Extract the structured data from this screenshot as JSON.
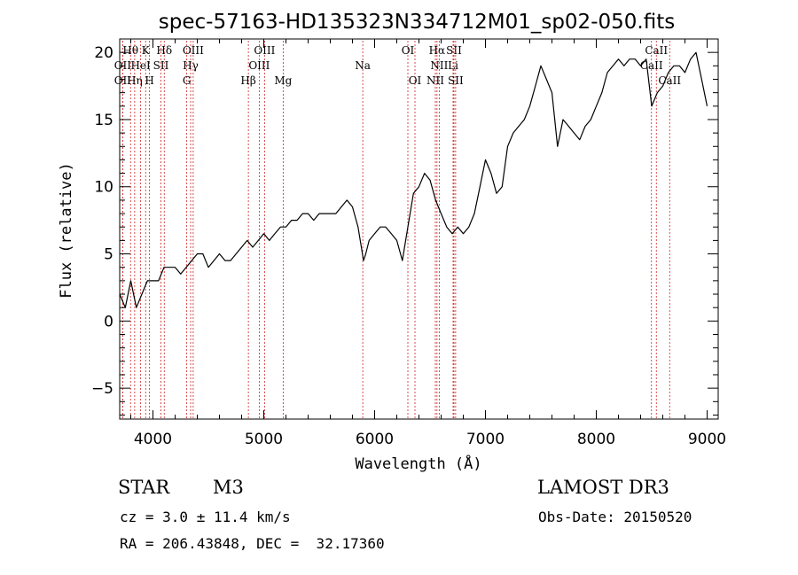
{
  "chart_data": {
    "type": "line",
    "title": "spec-57163-HD135323N334712M01_sp02-050.fits",
    "xlabel": "Wavelength (Å)",
    "ylabel": "Flux (relative)",
    "xlim": [
      3700,
      9100
    ],
    "ylim": [
      -7.3,
      21
    ],
    "xticks": [
      4000,
      5000,
      6000,
      7000,
      8000,
      9000
    ],
    "yticks": [
      -5,
      0,
      5,
      10,
      15,
      20
    ],
    "series": [
      {
        "name": "flux",
        "x": [
          3700,
          3750,
          3800,
          3850,
          3900,
          3950,
          4000,
          4050,
          4100,
          4150,
          4200,
          4250,
          4300,
          4350,
          4400,
          4450,
          4500,
          4550,
          4600,
          4650,
          4700,
          4750,
          4800,
          4850,
          4900,
          4950,
          5000,
          5050,
          5100,
          5150,
          5200,
          5250,
          5300,
          5350,
          5400,
          5450,
          5500,
          5550,
          5600,
          5650,
          5700,
          5750,
          5800,
          5850,
          5900,
          5920,
          5950,
          6000,
          6050,
          6100,
          6150,
          6200,
          6250,
          6300,
          6350,
          6400,
          6450,
          6500,
          6550,
          6600,
          6650,
          6700,
          6750,
          6800,
          6850,
          6900,
          6950,
          7000,
          7050,
          7100,
          7150,
          7200,
          7250,
          7300,
          7350,
          7400,
          7450,
          7500,
          7550,
          7600,
          7650,
          7700,
          7750,
          7800,
          7850,
          7900,
          7950,
          8000,
          8050,
          8100,
          8150,
          8200,
          8250,
          8300,
          8350,
          8400,
          8450,
          8500,
          8550,
          8600,
          8650,
          8700,
          8750,
          8800,
          8850,
          8900,
          8950,
          9000
        ],
        "y": [
          2,
          1,
          3,
          1,
          2,
          3,
          3,
          3,
          4,
          4,
          4,
          3.5,
          4,
          4.5,
          5,
          5,
          4,
          4.5,
          5,
          4.5,
          4.5,
          5,
          5.5,
          6,
          5.5,
          6,
          6.5,
          6,
          6.5,
          7,
          7,
          7.5,
          7.5,
          8,
          8,
          7.5,
          8,
          8,
          8,
          8,
          8.5,
          9,
          8.5,
          7,
          4.5,
          5,
          6,
          6.5,
          7,
          7,
          6.5,
          6,
          4.5,
          7,
          9.5,
          10,
          11,
          10.5,
          9,
          8,
          7,
          6.5,
          7,
          6.5,
          7,
          8,
          10,
          12,
          11,
          9.5,
          10,
          13,
          14,
          14.5,
          15,
          16,
          17.5,
          19,
          18,
          17,
          13,
          15,
          14.5,
          14,
          13.5,
          14.5,
          15,
          16,
          17,
          18.5,
          19,
          19.5,
          19,
          19.5,
          19.5,
          19,
          19.5,
          16,
          17,
          17.5,
          18.5,
          19,
          19,
          18.5,
          19.5,
          20,
          18,
          16
        ]
      }
    ],
    "spectral_lines": [
      {
        "label": "Hθ",
        "wl": 3798,
        "row": 0
      },
      {
        "label": "OII",
        "wl": 3727,
        "row": 1
      },
      {
        "label": "OII",
        "wl": 3727,
        "row": 2
      },
      {
        "label": "Hη",
        "wl": 3835,
        "row": 2
      },
      {
        "label": "K",
        "wl": 3934,
        "row": 0
      },
      {
        "label": "HeI",
        "wl": 3889,
        "row": 1
      },
      {
        "label": "SII",
        "wl": 4072,
        "row": 1
      },
      {
        "label": "H",
        "wl": 3969,
        "row": 2
      },
      {
        "label": "Hδ",
        "wl": 4102,
        "row": 0
      },
      {
        "label": "OIII",
        "wl": 4363,
        "row": 0
      },
      {
        "label": "Hγ",
        "wl": 4340,
        "row": 1
      },
      {
        "label": "G",
        "wl": 4305,
        "row": 2
      },
      {
        "label": "OIII",
        "wl": 5007,
        "row": 0
      },
      {
        "label": "OIII",
        "wl": 4959,
        "row": 1
      },
      {
        "label": "Hβ",
        "wl": 4861,
        "row": 2
      },
      {
        "label": "Mg",
        "wl": 5175,
        "row": 2
      },
      {
        "label": "Na",
        "wl": 5893,
        "row": 1
      },
      {
        "label": "OI",
        "wl": 6300,
        "row": 0
      },
      {
        "label": "OI",
        "wl": 6364,
        "row": 2
      },
      {
        "label": "Hα",
        "wl": 6563,
        "row": 0
      },
      {
        "label": "SII",
        "wl": 6716,
        "row": 0
      },
      {
        "label": "NII",
        "wl": 6583,
        "row": 1
      },
      {
        "label": "Li",
        "wl": 6708,
        "row": 1
      },
      {
        "label": "NII",
        "wl": 6548,
        "row": 2
      },
      {
        "label": "SII",
        "wl": 6731,
        "row": 2
      },
      {
        "label": "CaII",
        "wl": 8542,
        "row": 0
      },
      {
        "label": "CaII",
        "wl": 8498,
        "row": 1
      },
      {
        "label": "CaII",
        "wl": 8662,
        "row": 2
      }
    ]
  },
  "info": {
    "object_class": "STAR",
    "subclass": "M3",
    "survey": "LAMOST DR3",
    "redshift": "cz = 3.0 ± 11.4 km/s",
    "obs_date": "Obs-Date: 20150520",
    "coords": "RA = 206.43848, DEC =  32.17360"
  },
  "colors": {
    "axis": "#000000",
    "spectrum": "#000000",
    "line_marker": "#cc2222"
  }
}
